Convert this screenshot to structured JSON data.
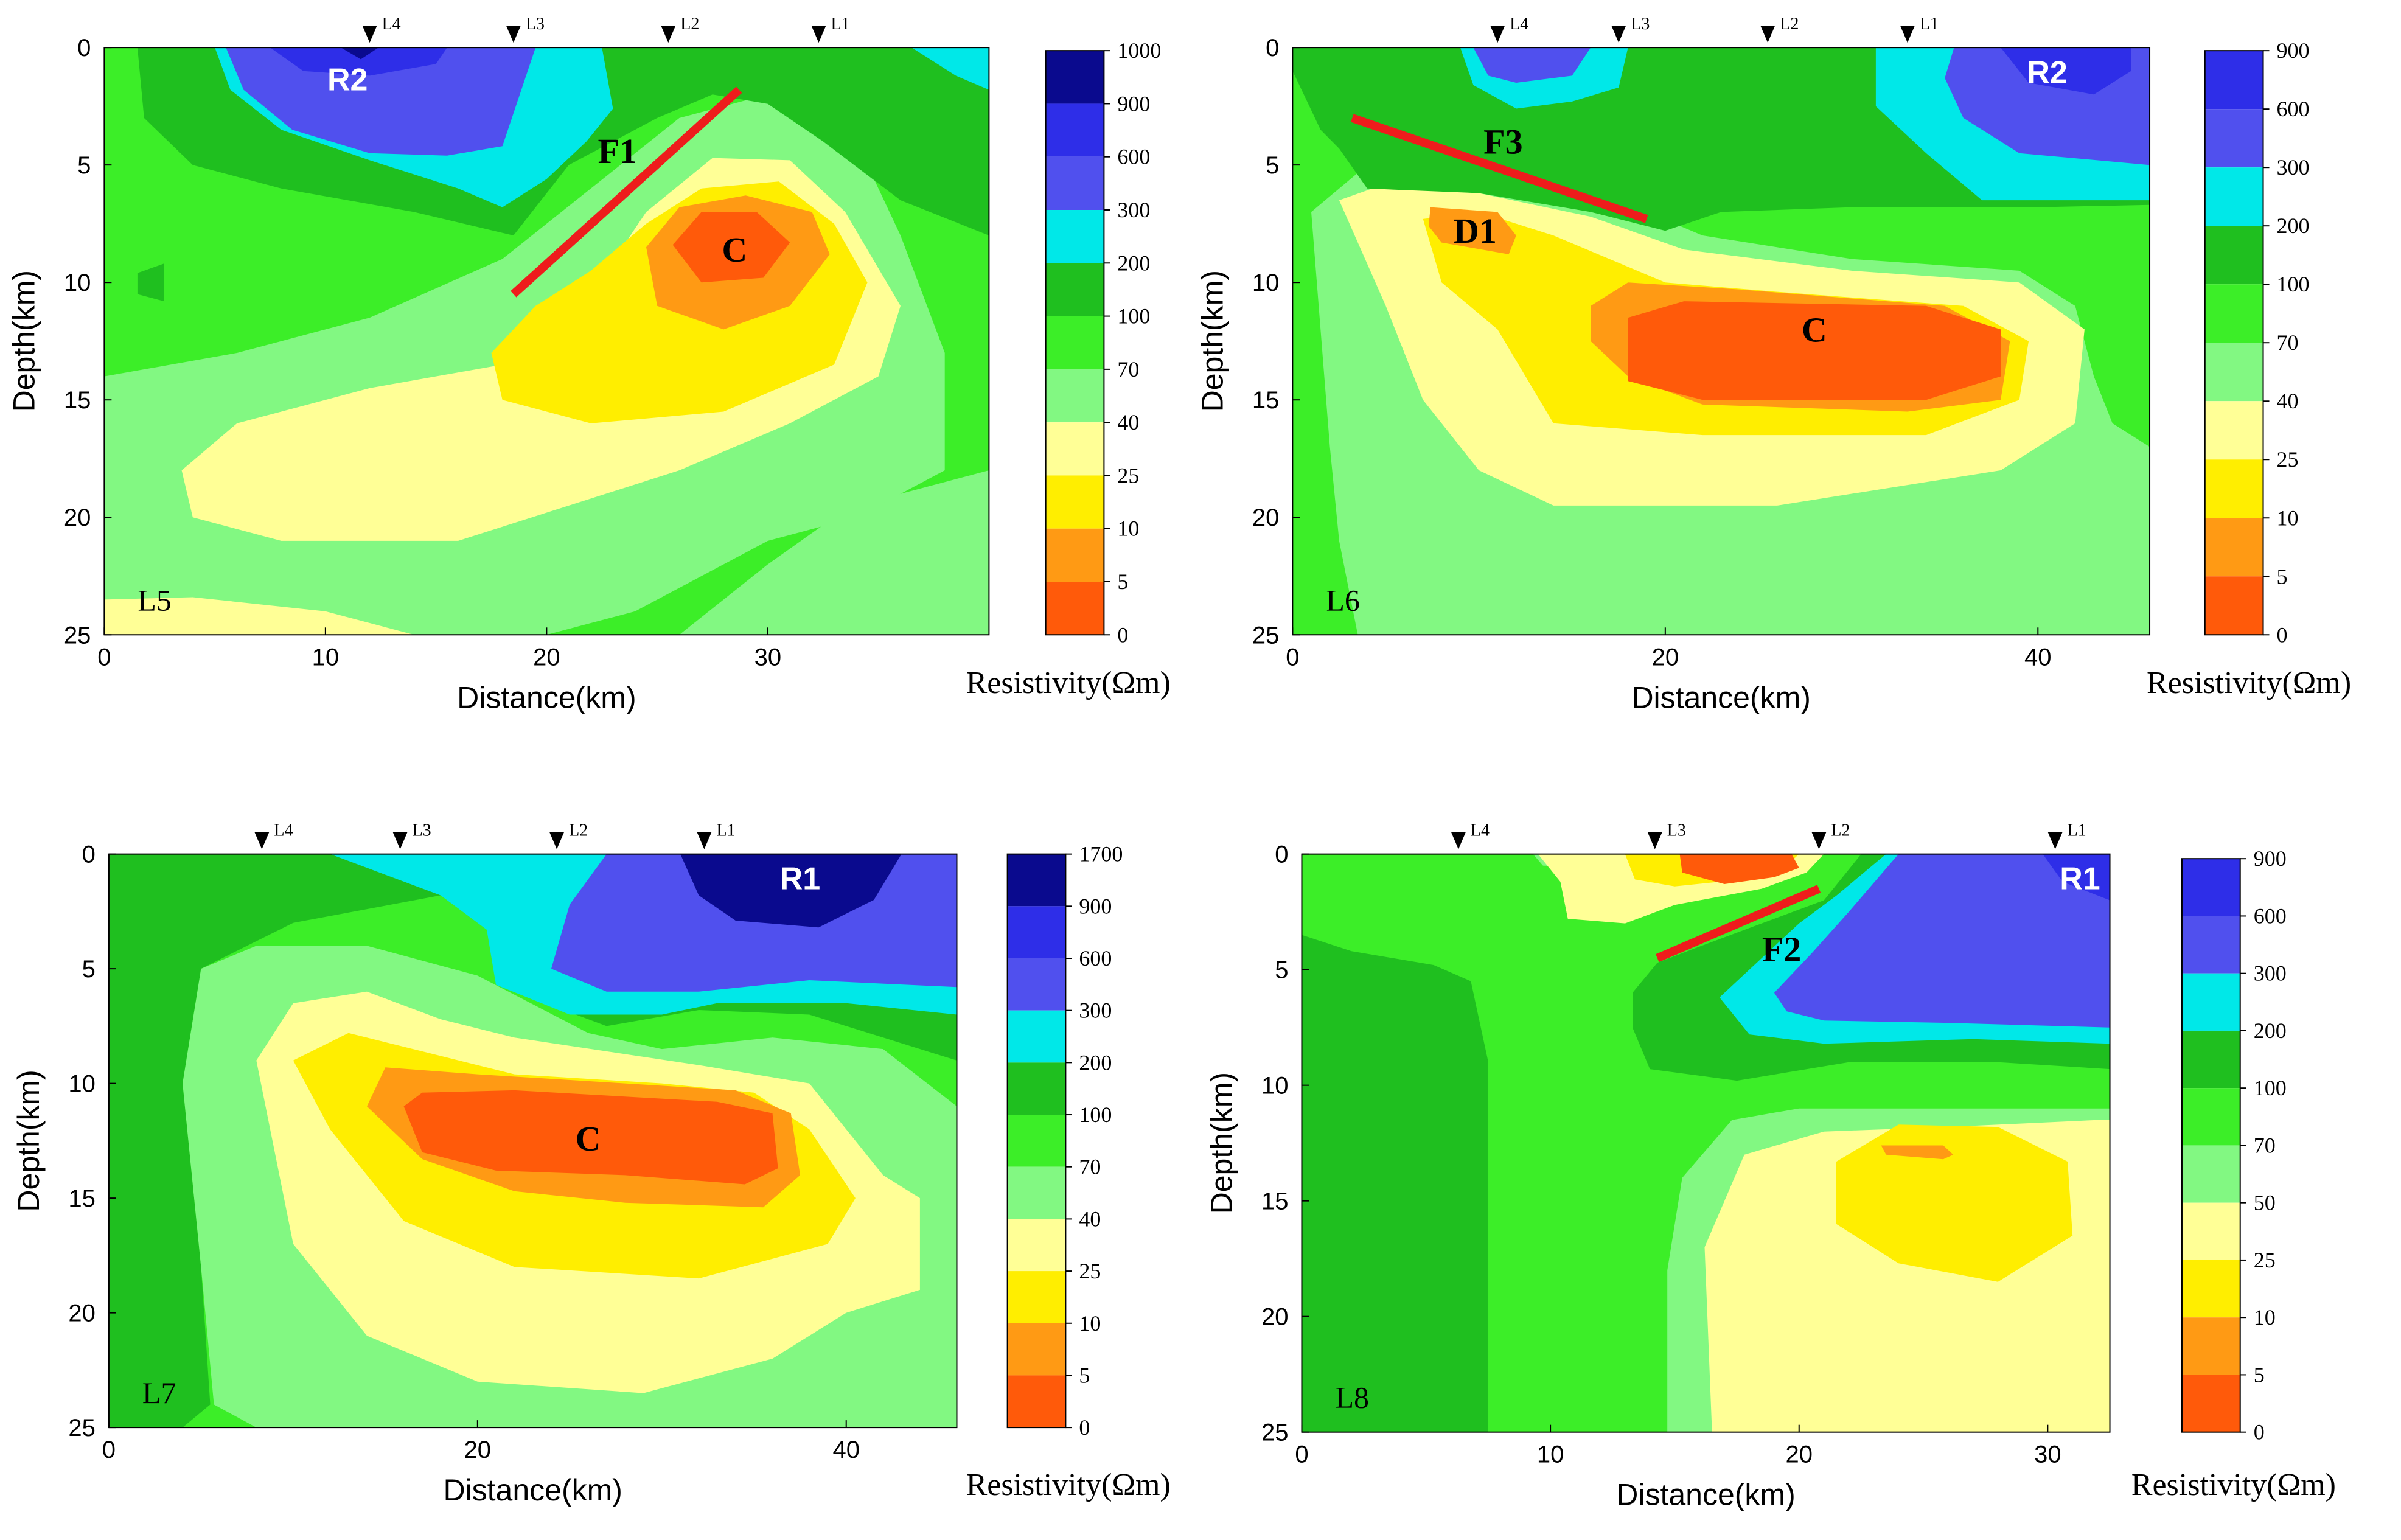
{
  "chart_data": [
    {
      "type": "heatmap",
      "line_label": "L5",
      "xlabel": "Distance(km)",
      "ylabel": "Depth(km)",
      "xlim": [
        0,
        40
      ],
      "ylim": [
        0,
        25
      ],
      "xticks": [
        0,
        10,
        20,
        30
      ],
      "yticks": [
        0,
        5,
        10,
        15,
        20,
        25
      ],
      "colorbar_title": "Resistivity(Ωm)",
      "colorbar_labels": [
        "1000",
        "900",
        "600",
        "300",
        "200",
        "100",
        "70",
        "40",
        "25",
        "10",
        "5",
        "0"
      ],
      "stations": [
        {
          "name": "L4",
          "x": 12
        },
        {
          "name": "L3",
          "x": 18.5
        },
        {
          "name": "L2",
          "x": 25.5
        },
        {
          "name": "L1",
          "x": 32.3
        }
      ],
      "annotations": [
        {
          "text": "R2",
          "x": 11,
          "y": 1.3
        },
        {
          "text": "C",
          "x": 28.5,
          "y": 8.6
        },
        {
          "text": "F1",
          "x": 23.2,
          "y": 4.4
        }
      ],
      "faults": [
        {
          "name": "F1",
          "x1": 18.5,
          "y1": 10.5,
          "x2": 28.7,
          "y2": 1.8
        }
      ]
    },
    {
      "type": "heatmap",
      "line_label": "L6",
      "xlabel": "Distance(km)",
      "ylabel": "Depth(km)",
      "xlim": [
        0,
        46
      ],
      "ylim": [
        0,
        25
      ],
      "xticks": [
        0,
        20,
        40
      ],
      "yticks": [
        0,
        5,
        10,
        15,
        20,
        25
      ],
      "colorbar_title": "Resistivity(Ωm)",
      "colorbar_labels": [
        "900",
        "600",
        "300",
        "200",
        "100",
        "70",
        "40",
        "25",
        "10",
        "5",
        "0"
      ],
      "stations": [
        {
          "name": "L4",
          "x": 11
        },
        {
          "name": "L3",
          "x": 17.5
        },
        {
          "name": "L2",
          "x": 25.5
        },
        {
          "name": "L1",
          "x": 33
        }
      ],
      "annotations": [
        {
          "text": "R2",
          "x": 40.5,
          "y": 1
        },
        {
          "text": "D1",
          "x": 9.8,
          "y": 7.8
        },
        {
          "text": "C",
          "x": 28,
          "y": 12
        },
        {
          "text": "F3",
          "x": 11.3,
          "y": 4
        }
      ],
      "faults": [
        {
          "name": "F3",
          "x1": 3.2,
          "y1": 3
        },
        {
          "name": "F3_end",
          "x1": 19,
          "y1": 7.3
        }
      ]
    },
    {
      "type": "heatmap",
      "line_label": "L7",
      "xlabel": "Distance(km)",
      "ylabel": "Depth(km)",
      "xlim": [
        0,
        46
      ],
      "ylim": [
        0,
        25
      ],
      "xticks": [
        0,
        20,
        40
      ],
      "yticks": [
        0,
        5,
        10,
        15,
        20,
        25
      ],
      "colorbar_title": "Resistivity(Ωm)",
      "colorbar_labels": [
        "1700",
        "900",
        "600",
        "300",
        "200",
        "100",
        "70",
        "40",
        "25",
        "10",
        "5",
        "0"
      ],
      "stations": [
        {
          "name": "L4",
          "x": 8.3
        },
        {
          "name": "L3",
          "x": 15.8
        },
        {
          "name": "L2",
          "x": 24.3
        },
        {
          "name": "L1",
          "x": 32.3
        }
      ],
      "annotations": [
        {
          "text": "R1",
          "x": 37.5,
          "y": 1
        },
        {
          "text": "C",
          "x": 26,
          "y": 12.4
        }
      ],
      "faults": []
    },
    {
      "type": "heatmap",
      "line_label": "L8",
      "xlabel": "Distance(km)",
      "ylabel": "Depth(km)",
      "xlim": [
        0,
        32.5
      ],
      "ylim": [
        0,
        25
      ],
      "xticks": [
        0,
        10,
        20,
        30
      ],
      "yticks": [
        0,
        5,
        10,
        15,
        20,
        25
      ],
      "colorbar_title": "Resistivity(Ωm)",
      "colorbar_labels": [
        "900",
        "600",
        "300",
        "200",
        "100",
        "70",
        "50",
        "25",
        "10",
        "5",
        "0"
      ],
      "stations": [
        {
          "name": "L4",
          "x": 6.3
        },
        {
          "name": "L3",
          "x": 14.2
        },
        {
          "name": "L2",
          "x": 20.8
        },
        {
          "name": "L1",
          "x": 30.3
        }
      ],
      "annotations": [
        {
          "text": "R1",
          "x": 31.3,
          "y": 1
        },
        {
          "text": "F2",
          "x": 19.3,
          "y": 4.1
        }
      ],
      "faults": [
        {
          "name": "F2",
          "x1": 14.3,
          "y1": 4.5,
          "x2": 20.8,
          "y2": 1.5
        }
      ]
    }
  ],
  "colors": {
    "c0": "#ff5a0a",
    "c1": "#ff9a14",
    "c2": "#ffee00",
    "c3": "#ffff96",
    "c4": "#82f882",
    "c5": "#3cee28",
    "c6": "#1fbf1f",
    "c7": "#00e8e8",
    "c8": "#5050ee",
    "c9": "#2e2ee8",
    "c10": "#0a0a8e",
    "fault": "#ee1c1c"
  }
}
